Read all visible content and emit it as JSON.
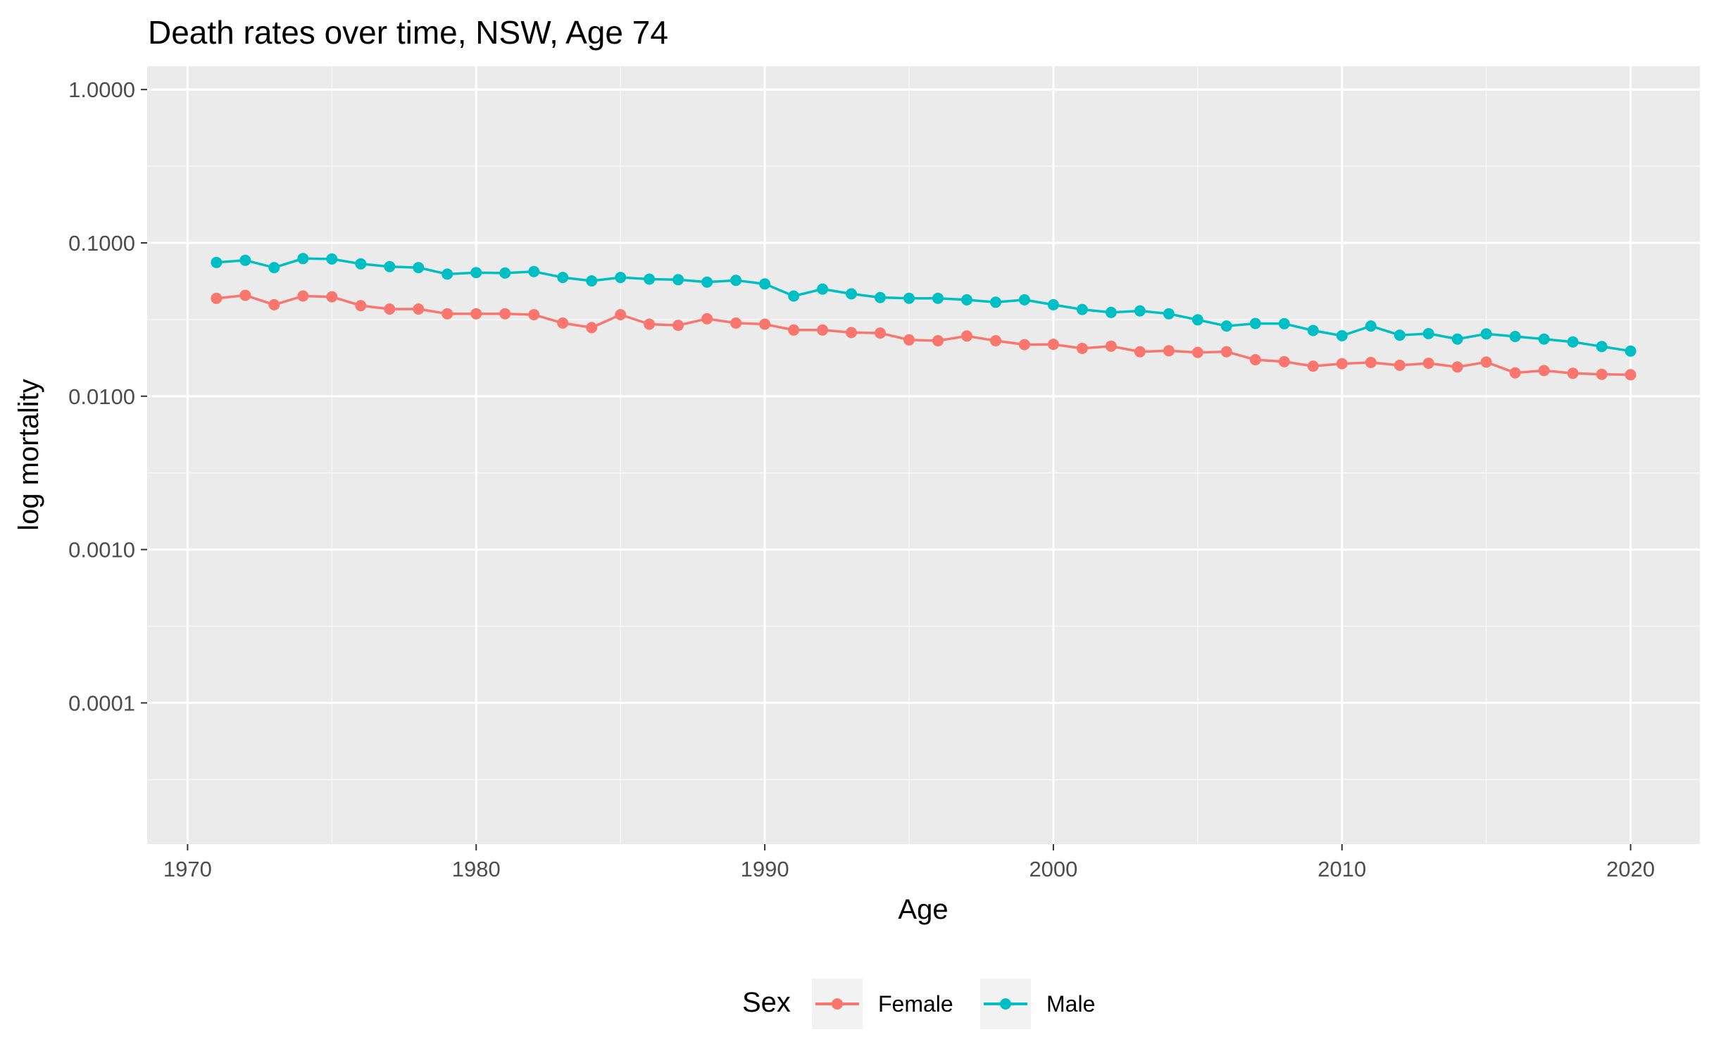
{
  "chart_data": {
    "type": "line",
    "title": "Death rates over time, NSW, Age 74",
    "xlabel": "Age",
    "ylabel": "log mortality",
    "y_scale": "log10",
    "xlim": [
      1968.6,
      2022.4
    ],
    "ylim": [
      1.2e-05,
      1.42
    ],
    "x_ticks": [
      1970,
      1980,
      1990,
      2000,
      2010,
      2020
    ],
    "x_tick_labels": [
      "1970",
      "1980",
      "1990",
      "2000",
      "2010",
      "2020"
    ],
    "y_ticks": [
      0.0001,
      0.001,
      0.01,
      0.1,
      1
    ],
    "y_tick_labels": [
      "0.0001",
      "0.0010",
      "0.0100",
      "0.1000",
      "1.0000"
    ],
    "grid": true,
    "background": "#ebebeb",
    "legend": {
      "title": "Sex",
      "position": "bottom"
    },
    "x": [
      1971,
      1972,
      1973,
      1974,
      1975,
      1976,
      1977,
      1978,
      1979,
      1980,
      1981,
      1982,
      1983,
      1984,
      1985,
      1986,
      1987,
      1988,
      1989,
      1990,
      1991,
      1992,
      1993,
      1994,
      1995,
      1996,
      1997,
      1998,
      1999,
      2000,
      2001,
      2002,
      2003,
      2004,
      2005,
      2006,
      2007,
      2008,
      2009,
      2010,
      2011,
      2012,
      2013,
      2014,
      2015,
      2016,
      2017,
      2018,
      2019,
      2020
    ],
    "series": [
      {
        "name": "Female",
        "color": "#f8766d",
        "values": [
          0.0435,
          0.0455,
          0.0395,
          0.045,
          0.0445,
          0.039,
          0.037,
          0.037,
          0.0345,
          0.0345,
          0.0345,
          0.034,
          0.03,
          0.028,
          0.034,
          0.0295,
          0.029,
          0.032,
          0.03,
          0.0295,
          0.027,
          0.027,
          0.026,
          0.0258,
          0.0233,
          0.023,
          0.0247,
          0.023,
          0.0217,
          0.0218,
          0.0205,
          0.0212,
          0.0195,
          0.0198,
          0.0193,
          0.0195,
          0.0173,
          0.0168,
          0.0157,
          0.0163,
          0.0166,
          0.0159,
          0.0164,
          0.0155,
          0.0167,
          0.0142,
          0.0147,
          0.0141,
          0.0139,
          0.0138
        ]
      },
      {
        "name": "Male",
        "color": "#00bfc4",
        "values": [
          0.0745,
          0.077,
          0.069,
          0.079,
          0.0785,
          0.073,
          0.07,
          0.069,
          0.0625,
          0.064,
          0.0635,
          0.065,
          0.0595,
          0.0565,
          0.0595,
          0.058,
          0.0575,
          0.0555,
          0.057,
          0.054,
          0.045,
          0.05,
          0.0465,
          0.044,
          0.0435,
          0.0435,
          0.0425,
          0.041,
          0.0425,
          0.0395,
          0.0368,
          0.0352,
          0.036,
          0.0345,
          0.0315,
          0.0287,
          0.0298,
          0.0297,
          0.0268,
          0.0248,
          0.0287,
          0.025,
          0.0256,
          0.0236,
          0.0255,
          0.0245,
          0.0236,
          0.0226,
          0.0211,
          0.0197
        ]
      }
    ]
  }
}
